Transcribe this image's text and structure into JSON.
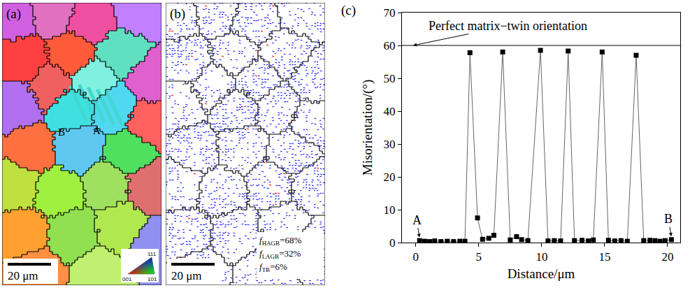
{
  "chart_data": {
    "type": "line",
    "panel_label": "(c)",
    "x_label": "Distance/μm",
    "y_label": "Misorientation/(°)",
    "x": [
      0.3,
      0.7,
      1.1,
      1.5,
      2.0,
      2.5,
      3.0,
      3.5,
      3.9,
      4.3,
      4.9,
      5.3,
      5.8,
      6.2,
      6.9,
      7.5,
      8.0,
      8.4,
      8.9,
      9.9,
      10.5,
      11.0,
      11.5,
      12.1,
      12.6,
      13.2,
      13.7,
      14.1,
      14.8,
      15.3,
      15.8,
      16.3,
      16.8,
      17.5,
      18.1,
      18.6,
      19.0,
      19.4,
      19.8,
      20.3
    ],
    "values": [
      0.6,
      0.4,
      0.3,
      0.5,
      0.3,
      0.4,
      0.3,
      0.4,
      0.4,
      57.8,
      7.5,
      1.0,
      1.3,
      2.2,
      58.0,
      0.8,
      1.8,
      0.9,
      0.6,
      58.5,
      0.5,
      0.6,
      0.5,
      58.3,
      0.6,
      0.7,
      0.5,
      0.8,
      58.0,
      0.7,
      0.5,
      0.6,
      0.4,
      57.0,
      0.6,
      0.7,
      0.6,
      0.4,
      0.6,
      0.9
    ],
    "color": "#000000",
    "marker": "square",
    "line_style": "solid",
    "xlim": [
      -1.1,
      21
    ],
    "ylim": [
      0,
      70
    ],
    "xticks": [
      0,
      5,
      10,
      15,
      20
    ],
    "yticks": [
      0,
      10,
      20,
      30,
      40,
      50,
      60,
      70
    ],
    "grid": false,
    "reference_line": {
      "value": 60,
      "label": "Perfect matrix−twin orientation"
    },
    "annotations": [
      {
        "text": "A",
        "x": 0.3,
        "y": 0.6
      },
      {
        "text": "B",
        "x": 20.3,
        "y": 0.9
      }
    ]
  },
  "images": [
    {
      "panel_label": "(a)",
      "scale_bar": "20 μm",
      "points": [
        "B",
        "A"
      ],
      "color_key": [
        "111",
        "001",
        "101"
      ]
    },
    {
      "panel_label": "(b)",
      "scale_bar": "20 μm",
      "fractions": [
        {
          "base": "f",
          "sub": "HAGB",
          "rest": "=68%"
        },
        {
          "base": "f",
          "sub": "LAGB",
          "rest": "=32%"
        },
        {
          "base": "f",
          "sub": "TB",
          "rest": "=6%"
        }
      ]
    }
  ]
}
